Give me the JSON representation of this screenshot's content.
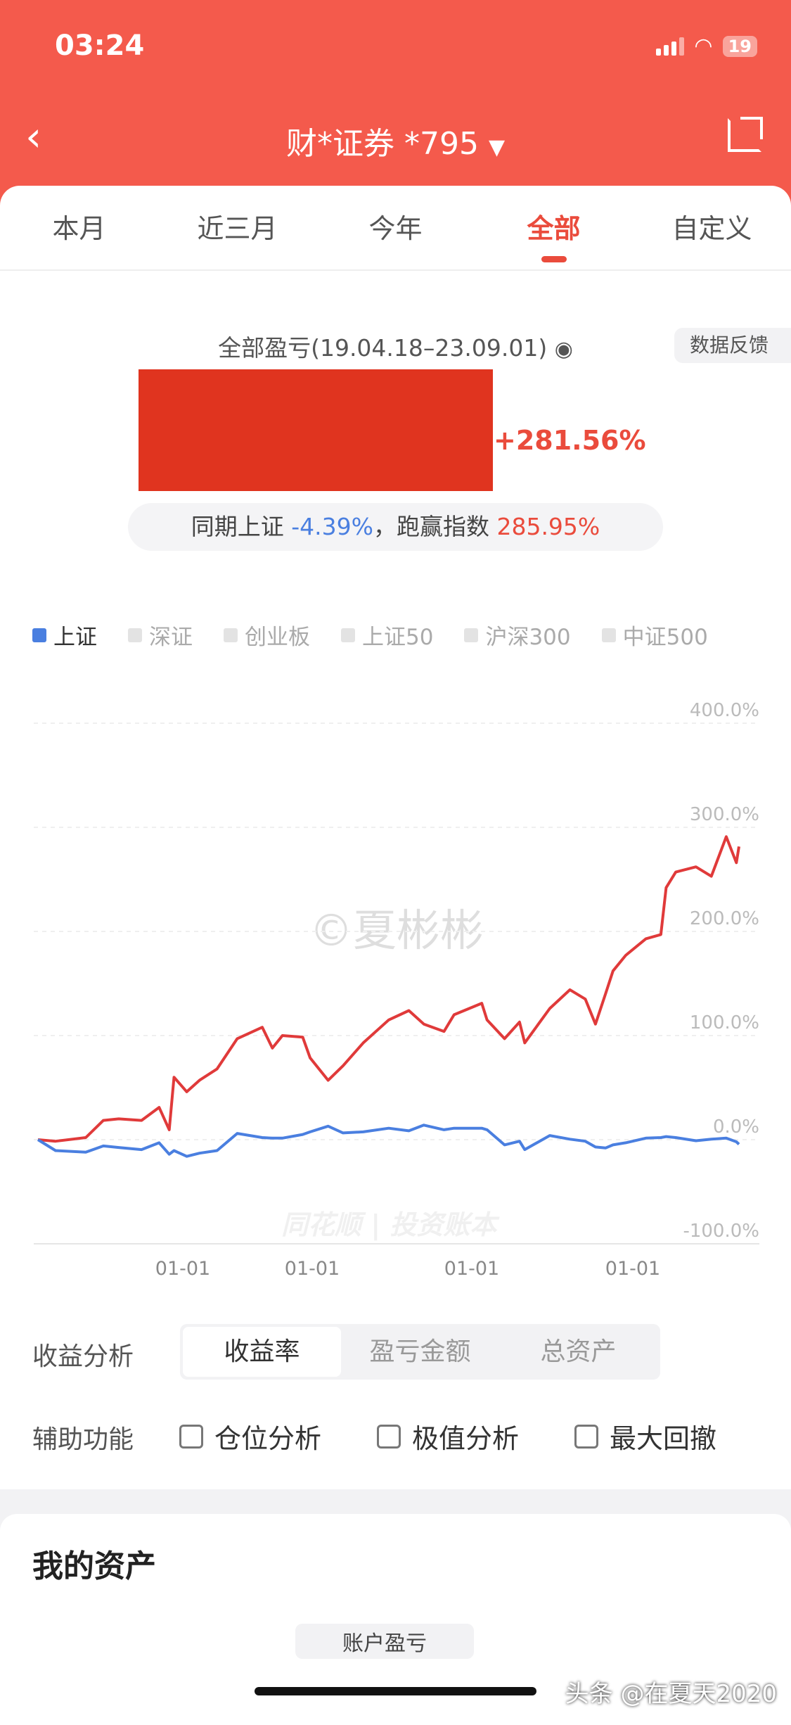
{
  "status_bar": {
    "time": "03:24",
    "battery": "19"
  },
  "nav": {
    "back_icon": "chevron-left-icon",
    "title": "财*证券 *795",
    "dropdown_icon": "triangle-down-icon",
    "share_icon": "share-icon"
  },
  "tabs": [
    {
      "label": "本月"
    },
    {
      "label": "近三月"
    },
    {
      "label": "今年"
    },
    {
      "label": "全部",
      "active": true
    },
    {
      "label": "自定义"
    }
  ],
  "summary": {
    "title": "全部盈亏(19.04.18–23.09.01)",
    "eye_icon": "eye-icon",
    "feedback": "数据反馈",
    "return_pct": "+281.56%",
    "compare_prefix": "同期上证",
    "index_pct": "-4.39%",
    "compare_mid": "，跑赢指数",
    "beat_pct": "285.95%"
  },
  "colors": {
    "header": "#f45a4c",
    "accent_red": "#ea4b3c",
    "account_line": "#e03a3a",
    "index_line": "#4a7fe0"
  },
  "legend": [
    {
      "label": "上证",
      "active": true
    },
    {
      "label": "深证"
    },
    {
      "label": "创业板"
    },
    {
      "label": "上证50"
    },
    {
      "label": "沪深300"
    },
    {
      "label": "中证500"
    }
  ],
  "chart_data": {
    "type": "line",
    "ylim": [
      -100,
      400
    ],
    "yticks": [
      "400.0%",
      "300.0%",
      "200.0%",
      "100.0%",
      "0.0%",
      "-100.0%"
    ],
    "xtick_labels": [
      "01-01",
      "01-01",
      "01-01",
      "01-01"
    ],
    "grid": true,
    "legend_position": "top",
    "x": [
      "2019-04-18",
      "2019-05-28",
      "2019-08-05",
      "2019-09-14",
      "2019-10-19",
      "2019-12-10",
      "2020-01-19",
      "2020-02-11",
      "2020-02-22",
      "2020-03-22",
      "2020-04-20",
      "2020-05-30",
      "2020-07-15",
      "2020-09-10",
      "2020-10-03",
      "2020-10-26",
      "2020-12-11",
      "2020-12-28",
      "2021-02-07",
      "2021-03-13",
      "2021-04-28",
      "2021-06-25",
      "2021-08-10",
      "2021-09-13",
      "2021-10-29",
      "2021-11-21",
      "2022-01-23",
      "2022-02-04",
      "2022-03-16",
      "2022-04-19",
      "2022-05-01",
      "2022-06-27",
      "2022-08-12",
      "2022-09-16",
      "2022-10-09",
      "2022-11-01",
      "2022-11-18",
      "2022-12-17",
      "2023-02-01",
      "2023-03-07",
      "2023-03-19",
      "2023-04-10",
      "2023-05-26",
      "2023-06-30",
      "2023-08-03",
      "2023-08-26",
      "2023-09-01"
    ],
    "series": [
      {
        "color": "#e03a3a",
        "values": [
          0,
          -1.5,
          2,
          18.5,
          20,
          18.5,
          31,
          9.5,
          60,
          46,
          57,
          68,
          97,
          108,
          88,
          100,
          98.5,
          78.5,
          57,
          71,
          93,
          115,
          124,
          111,
          104,
          120,
          131,
          115,
          97,
          113,
          93,
          126,
          144,
          135,
          111,
          140,
          162,
          177,
          193,
          197,
          242,
          257,
          262,
          253,
          291,
          266,
          281.56
        ]
      },
      {
        "name": "上证",
        "color": "#4a7fe0",
        "values": [
          0,
          -10.5,
          -12,
          -6,
          -7.5,
          -9.5,
          -3,
          -14,
          -10.5,
          -16,
          -13,
          -10.5,
          6,
          2,
          1.5,
          1.5,
          5,
          7.5,
          13,
          6.5,
          7.5,
          11,
          8.5,
          14,
          9.5,
          11,
          11,
          9.5,
          -5,
          -1.5,
          -9.5,
          4,
          0.5,
          -1.5,
          -7,
          -8,
          -5,
          -3,
          1.5,
          2,
          3,
          2,
          -1,
          0.5,
          1.5,
          -2,
          -4.39
        ]
      }
    ]
  },
  "watermark": {
    "author": "©夏彬彬",
    "brand": "同花顺 | 投资账本"
  },
  "analysis": {
    "label": "收益分析",
    "options": [
      {
        "label": "收益率",
        "active": true
      },
      {
        "label": "盈亏金额"
      },
      {
        "label": "总资产"
      }
    ]
  },
  "aux": {
    "label": "辅助功能",
    "options": [
      {
        "label": "仓位分析"
      },
      {
        "label": "极值分析"
      },
      {
        "label": "最大回撤"
      }
    ]
  },
  "assets": {
    "title": "我的资产",
    "button": "账户盈亏"
  },
  "corner_watermark": "头条 @在夏天2020"
}
